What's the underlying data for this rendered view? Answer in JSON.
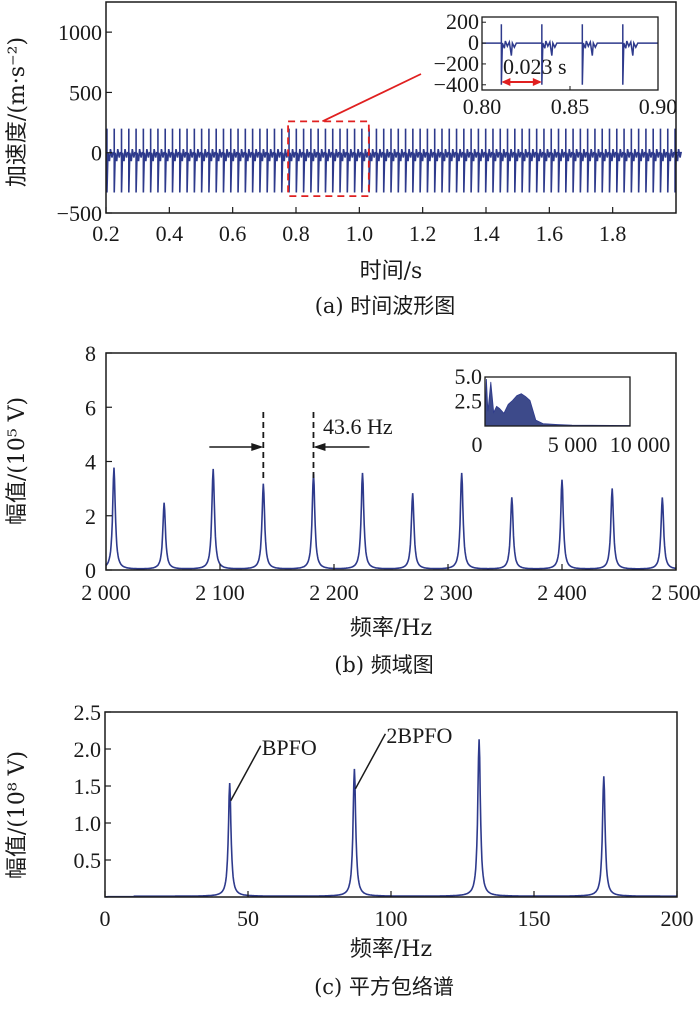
{
  "chart_data": [
    {
      "id": "a",
      "type": "line",
      "caption": "(a) 时间波形图",
      "xlabel": "时间/s",
      "ylabel": "加速度/(m·s⁻²)",
      "xlim": [
        0.2,
        2.0
      ],
      "ylim": [
        -500,
        1250
      ],
      "xticks": [
        0.2,
        0.4,
        0.6,
        0.8,
        1.0,
        1.2,
        1.4,
        1.6,
        1.8
      ],
      "xtick_labels": [
        "0.2",
        "0.4",
        "0.6",
        "0.8",
        "1.0",
        "1.2",
        "1.4",
        "1.6",
        "1.8"
      ],
      "yticks": [
        -500,
        0,
        500,
        1000
      ],
      "ytick_labels": [
        "−500",
        "0",
        "500",
        "1000"
      ],
      "series": [
        {
          "name": "acceleration",
          "color": "#2e3a8c",
          "impulse_period_s": 0.023,
          "impulse_max": 200,
          "impulse_min": -330
        }
      ],
      "zoom_region": {
        "x": [
          0.775,
          1.03
        ],
        "y": [
          -360,
          260
        ],
        "color": "#e02020"
      },
      "inset": {
        "xlim": [
          0.8,
          0.9
        ],
        "ylim": [
          -450,
          250
        ],
        "xticks": [
          0.8,
          0.85,
          0.9
        ],
        "xtick_labels": [
          "0.80",
          "0.85",
          "0.90"
        ],
        "yticks": [
          200,
          0,
          -200,
          -400
        ],
        "ytick_labels": [
          "200",
          "0",
          "−200",
          "−400"
        ],
        "impulse_times": [
          0.811,
          0.834,
          0.857,
          0.88
        ],
        "annotation": "0.023 s",
        "arrow_color": "#e02020"
      }
    },
    {
      "id": "b",
      "type": "line",
      "caption": "(b) 频域图",
      "xlabel": "频率/Hz",
      "ylabel": "幅值/(10⁵ V)",
      "xlim": [
        2000,
        2500
      ],
      "ylim": [
        0,
        8
      ],
      "xticks": [
        2000,
        2100,
        2200,
        2300,
        2400,
        2500
      ],
      "xtick_labels": [
        "2 000",
        "2 100",
        "2 200",
        "2 300",
        "2 400",
        "2 500"
      ],
      "yticks": [
        0,
        2,
        4,
        6,
        8
      ],
      "ytick_labels": [
        "0",
        "2",
        "4",
        "6",
        "8"
      ],
      "peaks": [
        {
          "x": 2007,
          "y": 3.75
        },
        {
          "x": 2051,
          "y": 2.45
        },
        {
          "x": 2094,
          "y": 3.7
        },
        {
          "x": 2138,
          "y": 3.15
        },
        {
          "x": 2182,
          "y": 3.5
        },
        {
          "x": 2225,
          "y": 3.55
        },
        {
          "x": 2269,
          "y": 2.8
        },
        {
          "x": 2312,
          "y": 3.55
        },
        {
          "x": 2356,
          "y": 2.65
        },
        {
          "x": 2400,
          "y": 3.3
        },
        {
          "x": 2444,
          "y": 2.98
        },
        {
          "x": 2488,
          "y": 2.65
        }
      ],
      "color": "#2e3a8c",
      "annotation": "43.6 Hz",
      "marker_lines_x": [
        2138,
        2182
      ],
      "inset": {
        "xlim": [
          0,
          10000
        ],
        "ylim": [
          0,
          5.0
        ],
        "xtick_labels": [
          "0",
          "5 000",
          "10 000"
        ],
        "ytick_labels": [
          "5.0",
          "2.5"
        ],
        "spectrum": [
          [
            0,
            0
          ],
          [
            100,
            4.8
          ],
          [
            200,
            1.5
          ],
          [
            400,
            4.5
          ],
          [
            600,
            1.4
          ],
          [
            800,
            2.0
          ],
          [
            1000,
            1.8
          ],
          [
            1300,
            1.3
          ],
          [
            1600,
            2.2
          ],
          [
            1900,
            2.6
          ],
          [
            2200,
            3.1
          ],
          [
            2500,
            3.3
          ],
          [
            2800,
            3.0
          ],
          [
            3100,
            2.6
          ],
          [
            3300,
            1.6
          ],
          [
            3500,
            0.6
          ],
          [
            4000,
            0.25
          ],
          [
            5000,
            0.15
          ],
          [
            6000,
            0.08
          ],
          [
            10000,
            0.05
          ]
        ]
      }
    },
    {
      "id": "c",
      "type": "line",
      "caption": "(c) 平方包络谱",
      "xlabel": "频率/Hz",
      "ylabel": "幅值/(10⁸ V)",
      "xlim": [
        0,
        200
      ],
      "ylim": [
        0,
        2.5
      ],
      "xticks": [
        0,
        50,
        100,
        150,
        200
      ],
      "xtick_labels": [
        "0",
        "50",
        "100",
        "150",
        "200"
      ],
      "yticks": [
        0.5,
        1.0,
        1.5,
        2.0,
        2.5
      ],
      "ytick_labels": [
        "0.5",
        "1.0",
        "1.5",
        "2.0",
        "2.5"
      ],
      "peaks": [
        {
          "x": 43.6,
          "y": 1.53,
          "label": "BPFO"
        },
        {
          "x": 87.2,
          "y": 1.72,
          "label": "2BPFO"
        },
        {
          "x": 130.8,
          "y": 2.12
        },
        {
          "x": 174.4,
          "y": 1.62
        }
      ],
      "color": "#2e3a8c"
    }
  ]
}
